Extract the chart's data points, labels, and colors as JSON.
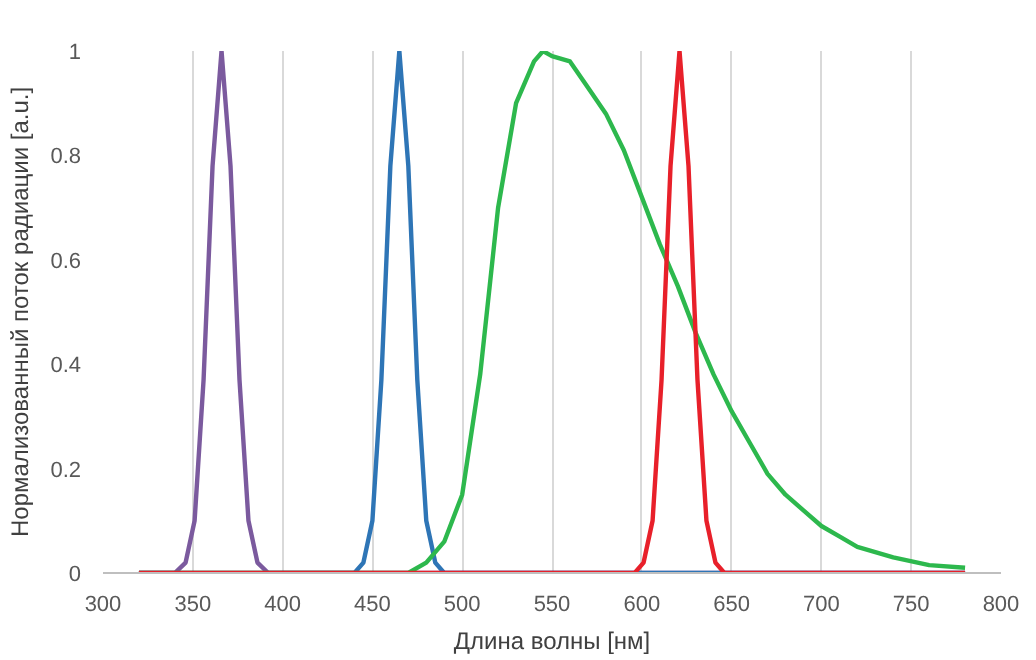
{
  "chart_data": {
    "type": "line",
    "xlabel": "Длина волны [нм]",
    "ylabel": "Нормализованный поток радиации [a.u.]",
    "xlim": [
      300,
      800
    ],
    "ylim": [
      0,
      1
    ],
    "xticks": [
      300,
      350,
      400,
      450,
      500,
      550,
      600,
      650,
      700,
      750,
      800
    ],
    "yticks": [
      0,
      {
        "value": 0.2,
        "label": "0.2"
      },
      {
        "value": 0.4,
        "label": "0.4"
      },
      {
        "value": 0.6,
        "label": "0.6"
      },
      {
        "value": 0.8,
        "label": "0.8"
      },
      1
    ],
    "grid": "x",
    "marker": "none",
    "line_style": "solid",
    "series": [
      {
        "color": "#7b5a9e",
        "x": [
          320,
          340,
          346,
          351,
          356,
          361,
          366,
          371,
          376,
          381,
          386,
          392,
          400,
          780
        ],
        "values": [
          0,
          0,
          0.02,
          0.1,
          0.37,
          0.78,
          1,
          0.78,
          0.37,
          0.1,
          0.02,
          0,
          0,
          0
        ]
      },
      {
        "color": "#2e75b6",
        "x": [
          320,
          440,
          445,
          450,
          455,
          460,
          465,
          470,
          475,
          480,
          485,
          490,
          780
        ],
        "values": [
          0,
          0,
          0.02,
          0.1,
          0.37,
          0.78,
          1,
          0.78,
          0.37,
          0.1,
          0.02,
          0,
          0
        ]
      },
      {
        "color": "#2db84d",
        "x": [
          320,
          470,
          480,
          490,
          500,
          510,
          520,
          530,
          540,
          545,
          550,
          560,
          570,
          580,
          590,
          600,
          610,
          620,
          630,
          640,
          650,
          660,
          670,
          680,
          690,
          700,
          710,
          720,
          740,
          760,
          780
        ],
        "values": [
          0,
          0,
          0.02,
          0.06,
          0.15,
          0.38,
          0.7,
          0.9,
          0.98,
          1,
          0.99,
          0.98,
          0.93,
          0.88,
          0.81,
          0.72,
          0.63,
          0.55,
          0.46,
          0.38,
          0.31,
          0.25,
          0.19,
          0.15,
          0.12,
          0.09,
          0.07,
          0.05,
          0.03,
          0.015,
          0.01
        ]
      },
      {
        "color": "#e8202a",
        "x": [
          320,
          596,
          601,
          606,
          611,
          616,
          621,
          626,
          631,
          636,
          641,
          646,
          780
        ],
        "values": [
          0,
          0,
          0.02,
          0.1,
          0.37,
          0.78,
          1,
          0.78,
          0.37,
          0.1,
          0.02,
          0,
          0
        ]
      }
    ]
  }
}
